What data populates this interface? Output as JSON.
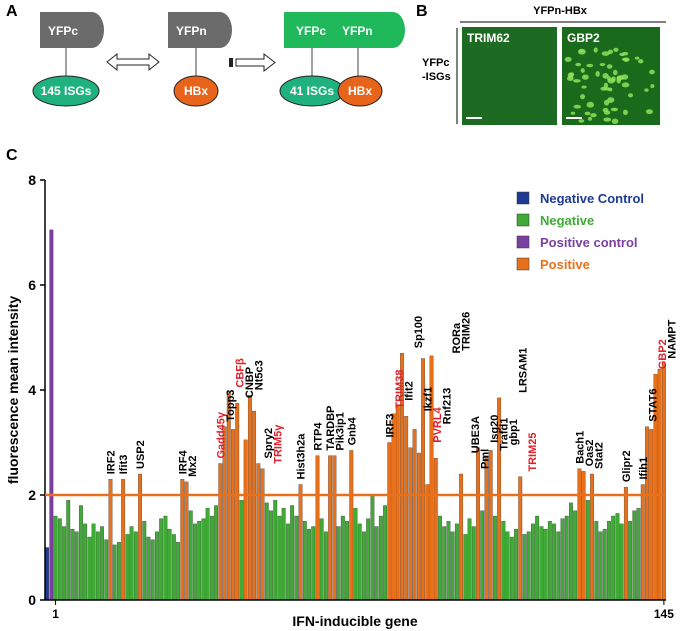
{
  "panel_a": {
    "label": "A",
    "yfpc": "YFPc",
    "yfpn": "YFPn",
    "isgs": "145 ISGs",
    "hbx": "HBx",
    "complex_yfpc": "YFPc",
    "complex_yfpn": "YFPn",
    "complex_isgs": "41 ISGs",
    "complex_hbx": "HBx"
  },
  "panel_b": {
    "label": "B",
    "header": "YFPn-HBx",
    "row_label_1": "YFPc",
    "row_label_2": "-ISGs",
    "image_1": "TRIM62",
    "image_2": "GBP2"
  },
  "chart_data": {
    "type": "bar",
    "panel_label": "C",
    "x_label": "IFN-inducible gene",
    "y_label": "fluorescence mean intensity",
    "ylim": [
      0,
      8
    ],
    "yticks": [
      0,
      2,
      4,
      6,
      8
    ],
    "threshold": 2,
    "threshold_color": "#e8701a",
    "legend": [
      {
        "name": "Negative Control",
        "color": "#1f3a93"
      },
      {
        "name": "Negative",
        "color": "#3faa35"
      },
      {
        "name": "Positive control",
        "color": "#7b3fa0"
      },
      {
        "name": "Positive",
        "color": "#e8701a"
      }
    ],
    "categories": [
      null,
      null,
      "1",
      null,
      null,
      null,
      null,
      null,
      null,
      null,
      null,
      null,
      null,
      null,
      null,
      null,
      null,
      null,
      null,
      null,
      null,
      null,
      null,
      null,
      null,
      null,
      null,
      null,
      null,
      null,
      null,
      null,
      null,
      null,
      null,
      null,
      null,
      null,
      null,
      null,
      null,
      null,
      null,
      null,
      null,
      null,
      null,
      null,
      null,
      null,
      null,
      null,
      null,
      null,
      null,
      null,
      null,
      null,
      null,
      null,
      null,
      null,
      null,
      null,
      null,
      null,
      null,
      null,
      null,
      null,
      null,
      null,
      null,
      null,
      null,
      null,
      null,
      null,
      null,
      null,
      null,
      null,
      null,
      null,
      null,
      null,
      null,
      null,
      null,
      null,
      null,
      null,
      null,
      null,
      null,
      null,
      null,
      null,
      null,
      null,
      null,
      null,
      null,
      null,
      null,
      null,
      null,
      null,
      null,
      null,
      null,
      null,
      null,
      null,
      null,
      null,
      null,
      null,
      null,
      null,
      null,
      null,
      null,
      null,
      null,
      null,
      null,
      null,
      null,
      null,
      null,
      null,
      null,
      null,
      null,
      null,
      null,
      null,
      null,
      null,
      null,
      null,
      null,
      null,
      null,
      null,
      "145"
    ],
    "values": [
      1.0,
      7.05,
      1.6,
      1.55,
      1.4,
      1.9,
      1.35,
      1.3,
      1.8,
      1.45,
      1.2,
      1.45,
      1.3,
      1.4,
      1.15,
      2.3,
      1.05,
      1.1,
      2.3,
      1.25,
      1.4,
      1.3,
      2.4,
      1.5,
      1.2,
      1.15,
      1.3,
      1.55,
      1.6,
      1.35,
      1.25,
      1.1,
      2.3,
      2.25,
      1.7,
      1.45,
      1.5,
      1.55,
      1.75,
      1.6,
      1.8,
      2.6,
      3.3,
      3.95,
      3.25,
      3.75,
      1.9,
      3.05,
      3.9,
      3.6,
      2.6,
      2.5,
      1.85,
      1.7,
      1.9,
      1.6,
      1.75,
      1.45,
      1.8,
      1.6,
      2.2,
      1.5,
      1.35,
      1.4,
      2.75,
      1.55,
      1.3,
      2.75,
      2.75,
      1.4,
      1.6,
      1.5,
      2.85,
      1.75,
      1.45,
      1.3,
      1.55,
      2.0,
      1.4,
      1.6,
      1.8,
      3.0,
      3.55,
      3.7,
      4.7,
      3.5,
      2.9,
      3.25,
      2.8,
      4.6,
      2.2,
      4.65,
      2.7,
      1.6,
      1.4,
      1.5,
      1.3,
      1.45,
      2.4,
      1.25,
      1.55,
      1.4,
      2.9,
      1.7,
      2.75,
      2.85,
      1.6,
      3.85,
      1.5,
      1.3,
      1.2,
      1.35,
      2.35,
      1.25,
      1.3,
      1.45,
      1.6,
      1.4,
      1.35,
      1.5,
      1.45,
      1.3,
      1.55,
      1.6,
      1.85,
      1.7,
      2.5,
      2.45,
      1.9,
      2.4,
      1.5,
      1.3,
      1.35,
      1.5,
      1.6,
      1.65,
      1.45,
      2.15,
      1.5,
      1.7,
      1.75,
      2.2,
      3.3,
      3.25,
      4.3,
      4.4,
      4.5
    ],
    "bar_colors": [
      "#1f3a93",
      "#7b3fa0",
      "#3faa35",
      "#3faa35",
      "#3faa35",
      "#3faa35",
      "#3faa35",
      "#3faa35",
      "#3faa35",
      "#3faa35",
      "#3faa35",
      "#3faa35",
      "#3faa35",
      "#3faa35",
      "#3faa35",
      "#e8701a",
      "#3faa35",
      "#3faa35",
      "#e8701a",
      "#3faa35",
      "#3faa35",
      "#3faa35",
      "#e8701a",
      "#3faa35",
      "#3faa35",
      "#3faa35",
      "#3faa35",
      "#3faa35",
      "#3faa35",
      "#3faa35",
      "#3faa35",
      "#3faa35",
      "#e8701a",
      "#e8701a",
      "#3faa35",
      "#3faa35",
      "#3faa35",
      "#3faa35",
      "#3faa35",
      "#3faa35",
      "#3faa35",
      "#e8701a",
      "#e8701a",
      "#e8701a",
      "#e8701a",
      "#e8701a",
      "#3faa35",
      "#e8701a",
      "#e8701a",
      "#e8701a",
      "#e8701a",
      "#e8701a",
      "#3faa35",
      "#3faa35",
      "#3faa35",
      "#3faa35",
      "#3faa35",
      "#3faa35",
      "#3faa35",
      "#3faa35",
      "#e8701a",
      "#3faa35",
      "#3faa35",
      "#3faa35",
      "#e8701a",
      "#3faa35",
      "#3faa35",
      "#e8701a",
      "#e8701a",
      "#3faa35",
      "#3faa35",
      "#3faa35",
      "#e8701a",
      "#3faa35",
      "#3faa35",
      "#3faa35",
      "#3faa35",
      "#3faa35",
      "#3faa35",
      "#3faa35",
      "#3faa35",
      "#e8701a",
      "#e8701a",
      "#e8701a",
      "#e8701a",
      "#e8701a",
      "#e8701a",
      "#e8701a",
      "#e8701a",
      "#e8701a",
      "#e8701a",
      "#e8701a",
      "#e8701a",
      "#3faa35",
      "#3faa35",
      "#3faa35",
      "#3faa35",
      "#3faa35",
      "#e8701a",
      "#3faa35",
      "#3faa35",
      "#3faa35",
      "#e8701a",
      "#3faa35",
      "#e8701a",
      "#e8701a",
      "#3faa35",
      "#e8701a",
      "#3faa35",
      "#3faa35",
      "#3faa35",
      "#3faa35",
      "#e8701a",
      "#3faa35",
      "#3faa35",
      "#3faa35",
      "#3faa35",
      "#3faa35",
      "#3faa35",
      "#3faa35",
      "#3faa35",
      "#3faa35",
      "#3faa35",
      "#3faa35",
      "#3faa35",
      "#3faa35",
      "#e8701a",
      "#e8701a",
      "#3faa35",
      "#e8701a",
      "#3faa35",
      "#3faa35",
      "#3faa35",
      "#3faa35",
      "#3faa35",
      "#3faa35",
      "#3faa35",
      "#e8701a",
      "#3faa35",
      "#3faa35",
      "#3faa35",
      "#e8701a",
      "#e8701a",
      "#e8701a",
      "#e8701a",
      "#e8701a",
      "#e8701a"
    ],
    "annotations": [
      {
        "text": "IRF2",
        "index": 15,
        "color": "#000000"
      },
      {
        "text": "Ifit3",
        "index": 18,
        "color": "#000000"
      },
      {
        "text": "USP2",
        "index": 22,
        "color": "#000000"
      },
      {
        "text": "IRF4",
        "index": 32,
        "color": "#000000"
      },
      {
        "text": "Mx2",
        "index": 33,
        "color": "#000000"
      },
      {
        "text": "Gadd45γ",
        "index": 41,
        "color": "#e0202a"
      },
      {
        "text": "Topp3",
        "index": 42,
        "color": "#000000"
      },
      {
        "text": "CBFβ",
        "index": 43,
        "color": "#e0202a"
      },
      {
        "text": "CNBP",
        "index": 45,
        "color": "#000000"
      },
      {
        "text": "Nt5c3",
        "index": 48,
        "color": "#000000"
      },
      {
        "text": "Spry2",
        "index": 50,
        "color": "#000000"
      },
      {
        "text": "TRIM5γ",
        "index": 51,
        "color": "#e0202a"
      },
      {
        "text": "Hist3h2a",
        "index": 60,
        "color": "#000000"
      },
      {
        "text": "RTP4",
        "index": 64,
        "color": "#000000"
      },
      {
        "text": "TARDBP",
        "index": 67,
        "color": "#000000"
      },
      {
        "text": "Pik3ip1",
        "index": 68,
        "color": "#000000"
      },
      {
        "text": "Gnb4",
        "index": 72,
        "color": "#000000"
      },
      {
        "text": "IRF3",
        "index": 81,
        "color": "#000000"
      },
      {
        "text": "TRIM38",
        "index": 82,
        "color": "#e0202a"
      },
      {
        "text": "Ifit2",
        "index": 83,
        "color": "#000000"
      },
      {
        "text": "Sp100",
        "index": 84,
        "color": "#000000"
      },
      {
        "text": "Ikzf1",
        "index": 85,
        "color": "#000000"
      },
      {
        "text": "PVRL4",
        "index": 86,
        "color": "#e0202a"
      },
      {
        "text": "Rnf213",
        "index": 87,
        "color": "#000000"
      },
      {
        "text": "RORa",
        "index": 89,
        "color": "#000000"
      },
      {
        "text": "TRIM26",
        "index": 91,
        "color": "#000000"
      },
      {
        "text": "UBE3A",
        "index": 92,
        "color": "#000000"
      },
      {
        "text": "Pml",
        "index": 98,
        "color": "#000000"
      },
      {
        "text": "Isg20",
        "index": 102,
        "color": "#000000"
      },
      {
        "text": "Trafd1",
        "index": 104,
        "color": "#000000"
      },
      {
        "text": "gbp1",
        "index": 105,
        "color": "#000000"
      },
      {
        "text": "LRSAM1",
        "index": 107,
        "color": "#000000"
      },
      {
        "text": "TRIM25",
        "index": 112,
        "color": "#e0202a"
      },
      {
        "text": "Bach1",
        "index": 126,
        "color": "#000000"
      },
      {
        "text": "Oas2",
        "index": 127,
        "color": "#000000"
      },
      {
        "text": "Stat2",
        "index": 129,
        "color": "#000000"
      },
      {
        "text": "Glipr2",
        "index": 137,
        "color": "#000000"
      },
      {
        "text": "Ifih1",
        "index": 141,
        "color": "#000000"
      },
      {
        "text": "STAT6",
        "index": 142,
        "color": "#000000"
      },
      {
        "text": "GBP2",
        "index": 144,
        "color": "#e0202a"
      },
      {
        "text": "NAMPT",
        "index": 146,
        "color": "#000000"
      }
    ]
  }
}
